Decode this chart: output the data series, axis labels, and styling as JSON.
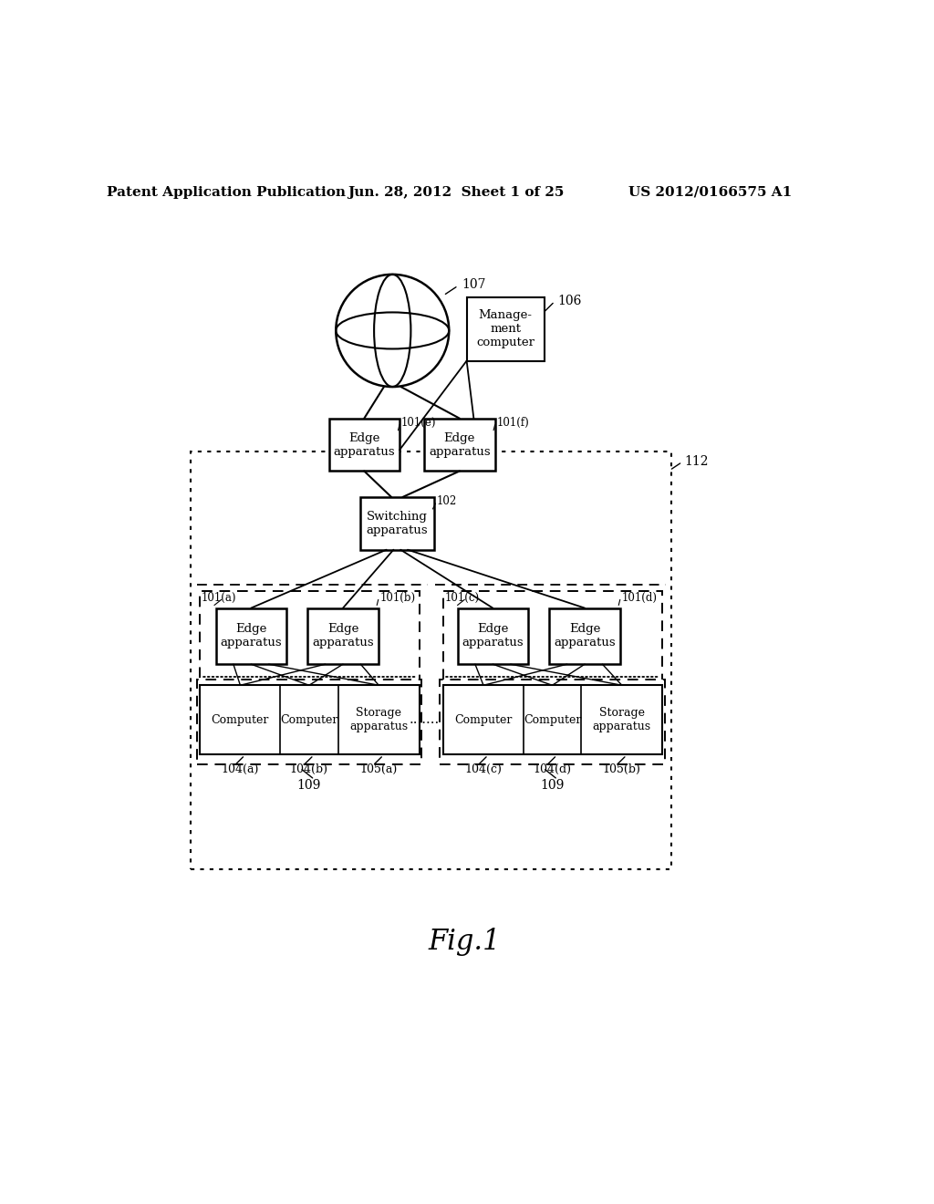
{
  "bg_color": "#ffffff",
  "header_left": "Patent Application Publication",
  "header_mid": "Jun. 28, 2012  Sheet 1 of 25",
  "header_right": "US 2012/0166575 A1",
  "fig_label": "Fig.1",
  "network_label": "107",
  "mgmt_label": "106",
  "mgmt_text": "Manage-\nment\ncomputer",
  "switch_label": "102",
  "switch_text": "Switching\napparatus",
  "edge_e_label": "101(e)",
  "edge_f_label": "101(f)",
  "edge_e_text": "Edge\napparatus",
  "edge_f_text": "Edge\napparatus",
  "outer_box_label": "112",
  "left_group_label": "109",
  "right_group_label": "109",
  "edge_a_label": "101(a)",
  "edge_b_label": "101(b)",
  "edge_c_label": "101(c)",
  "edge_d_label": "101(d)",
  "edge_a_text": "Edge\napparatus",
  "edge_b_text": "Edge\napparatus",
  "edge_c_text": "Edge\napparatus",
  "edge_d_text": "Edge\napparatus",
  "comp_a_label": "104(a)",
  "comp_b_label": "104(b)",
  "stor_a_label": "105(a)",
  "comp_c_label": "104(c)",
  "comp_d_label": "104(d)",
  "stor_b_label": "105(b)",
  "comp_a_text": "Computer",
  "comp_b_text": "Computer",
  "stor_a_text": "Storage\napparatus",
  "comp_c_text": "Computer",
  "comp_d_text": "Computer",
  "stor_b_text": "Storage\napparatus",
  "dotted_text": "......."
}
